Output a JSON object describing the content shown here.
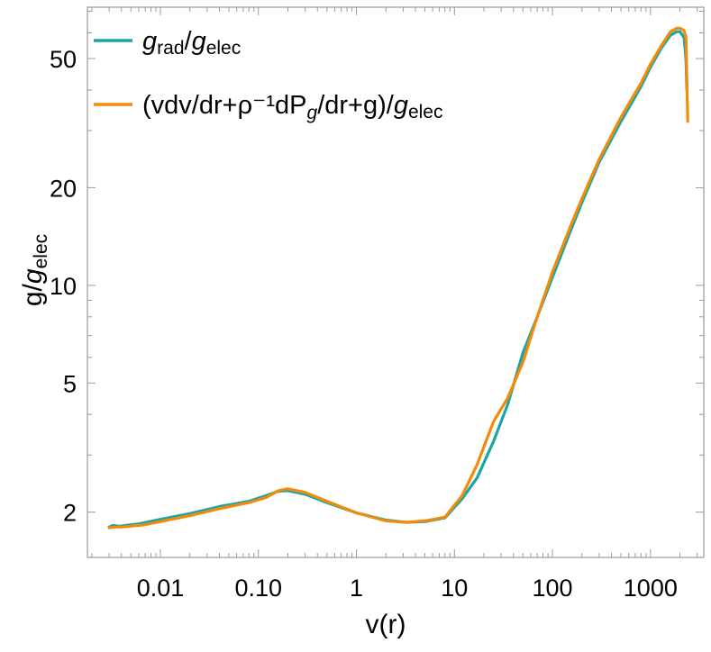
{
  "chart_data": {
    "type": "line",
    "xlabel": "v(r)",
    "ylabel": {
      "main": "g/",
      "ital": "g",
      "sub": "elec"
    },
    "x_scale": "log",
    "y_scale": "log",
    "xlim": [
      0.0018,
      3500
    ],
    "ylim": [
      1.45,
      72
    ],
    "grid": false,
    "legend_position": "top-left",
    "x_ticks": [
      {
        "value": 0.01,
        "label": "0.01"
      },
      {
        "value": 0.1,
        "label": "0.10"
      },
      {
        "value": 1,
        "label": "1"
      },
      {
        "value": 10,
        "label": "10"
      },
      {
        "value": 100,
        "label": "100"
      },
      {
        "value": 1000,
        "label": "1000"
      }
    ],
    "y_ticks": [
      {
        "value": 2,
        "label": "2"
      },
      {
        "value": 5,
        "label": "5"
      },
      {
        "value": 10,
        "label": "10"
      },
      {
        "value": 20,
        "label": "20"
      },
      {
        "value": 50,
        "label": "50"
      }
    ],
    "series": [
      {
        "name": "g_rad/g_elec",
        "legend": {
          "i1": "g",
          "s1": "rad",
          "m1": "/",
          "i2": "g",
          "s2": "elec",
          "m2": ""
        },
        "color": "#1aa6a6",
        "x": [
          0.003,
          0.0033,
          0.0038,
          0.0045,
          0.006,
          0.01,
          0.02,
          0.04,
          0.08,
          0.12,
          0.16,
          0.2,
          0.3,
          0.5,
          1,
          2,
          3.2,
          5,
          8,
          12,
          17,
          25,
          35,
          50,
          70,
          100,
          150,
          200,
          300,
          500,
          800,
          1000,
          1300,
          1600,
          1850,
          2000,
          2200,
          2300,
          2350
        ],
        "y": [
          1.8,
          1.82,
          1.81,
          1.82,
          1.84,
          1.9,
          1.98,
          2.08,
          2.16,
          2.25,
          2.32,
          2.33,
          2.27,
          2.14,
          1.99,
          1.89,
          1.86,
          1.87,
          1.92,
          2.2,
          2.55,
          3.3,
          4.3,
          6.2,
          8.0,
          10.6,
          14.5,
          18.0,
          24.0,
          32.0,
          41.0,
          47.0,
          54.0,
          59.0,
          60.5,
          60.5,
          58.0,
          50.0,
          40.0
        ]
      },
      {
        "name": "(vdv/dr+ρ^-1dP_g/dr+g)/g_elec",
        "legend": {
          "i1": "",
          "s1": "",
          "m1": "(vdv/dr+ρ⁻¹dP",
          "i2": "g",
          "s2": "",
          "m2": "/dr+g)/",
          "i3": "g",
          "s3": "elec"
        },
        "color": "#f28a0a",
        "x": [
          0.003,
          0.0035,
          0.004,
          0.005,
          0.007,
          0.01,
          0.02,
          0.04,
          0.08,
          0.12,
          0.16,
          0.2,
          0.3,
          0.5,
          1,
          2,
          3.2,
          5,
          8,
          12,
          17,
          25,
          35,
          50,
          70,
          100,
          150,
          200,
          300,
          500,
          800,
          1000,
          1300,
          1600,
          1850,
          2000,
          2200,
          2300,
          2400
        ],
        "y": [
          1.79,
          1.8,
          1.8,
          1.81,
          1.83,
          1.87,
          1.95,
          2.05,
          2.14,
          2.22,
          2.33,
          2.36,
          2.3,
          2.16,
          1.99,
          1.88,
          1.86,
          1.88,
          1.93,
          2.25,
          2.8,
          3.8,
          4.5,
          5.8,
          8.0,
          11.0,
          15.0,
          18.5,
          24.5,
          33.0,
          42.0,
          48.0,
          55.0,
          60.5,
          62.0,
          62.0,
          61.0,
          58.0,
          32.0
        ]
      }
    ]
  }
}
